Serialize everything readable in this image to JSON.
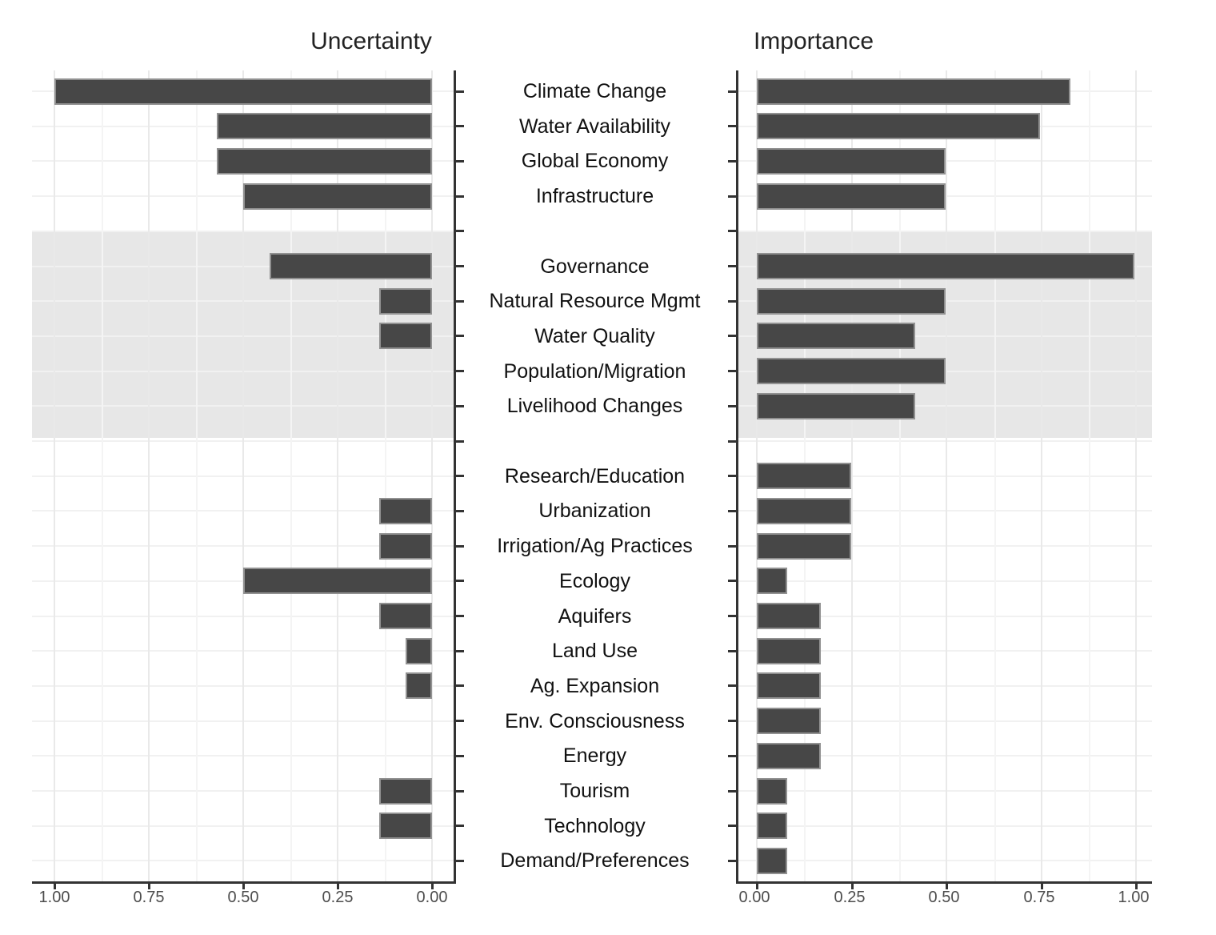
{
  "chart_data": {
    "type": "bar",
    "orientation": "horizontal",
    "panels": [
      {
        "title": "Uncertainty",
        "axis_reversed": true,
        "xlim": [
          0,
          1
        ],
        "x_ticks": [
          "1.00",
          "0.75",
          "0.50",
          "0.25",
          "0.00"
        ]
      },
      {
        "title": "Importance",
        "axis_reversed": false,
        "xlim": [
          0,
          1
        ],
        "x_ticks": [
          "0.00",
          "0.25",
          "0.50",
          "0.75",
          "1.00"
        ]
      }
    ],
    "categories": [
      "Climate Change",
      "Water Availability",
      "Global Economy",
      "Infrastructure",
      "Governance",
      "Natural Resource Mgmt",
      "Water Quality",
      "Population/Migration",
      "Livelihood Changes",
      "Research/Education",
      "Urbanization",
      "Irrigation/Ag Practices",
      "Ecology",
      "Aquifers",
      "Land Use",
      "Ag. Expansion",
      "Env. Consciousness",
      "Energy",
      "Tourism",
      "Technology",
      "Demand/Preferences"
    ],
    "group_breaks_after": [
      "Infrastructure",
      "Livelihood Changes"
    ],
    "highlighted_categories": [
      "Governance",
      "Natural Resource Mgmt",
      "Water Quality",
      "Population/Migration",
      "Livelihood Changes"
    ],
    "series": [
      {
        "name": "Uncertainty",
        "values": [
          1.0,
          0.57,
          0.57,
          0.5,
          0.43,
          0.14,
          0.14,
          0.0,
          0.0,
          0.0,
          0.14,
          0.14,
          0.5,
          0.14,
          0.07,
          0.07,
          0.0,
          0.0,
          0.14,
          0.14,
          0.0
        ]
      },
      {
        "name": "Importance",
        "values": [
          0.83,
          0.75,
          0.5,
          0.5,
          1.0,
          0.5,
          0.42,
          0.5,
          0.42,
          0.25,
          0.25,
          0.25,
          0.08,
          0.17,
          0.17,
          0.17,
          0.17,
          0.17,
          0.08,
          0.08,
          0.08
        ]
      }
    ],
    "grid": "on",
    "legend": "none"
  },
  "colors": {
    "bar_fill": "#474747",
    "bar_border": "#919191",
    "highlight_band": "#e7e7e7",
    "axis_line": "#333333",
    "major_grid": "#e9e9e9",
    "minor_grid": "#f4f4f4",
    "row_grid": "#f1f1f1",
    "tick_label": "#4d4d4d",
    "category_label": "#111111",
    "background": "#ffffff"
  }
}
